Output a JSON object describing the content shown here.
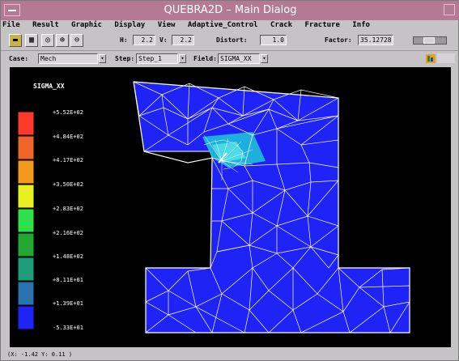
{
  "window": {
    "title": "QUEBRA2D – Main Dialog"
  },
  "menu": [
    "File",
    "Result",
    "Graphic",
    "Display",
    "View",
    "Adaptive_Control",
    "Crack",
    "Fracture",
    "Info"
  ],
  "toolbar": {
    "h_label": "H:",
    "h_value": "2.2",
    "v_label": "V:",
    "v_value": "2.2",
    "distort_label": "Distort:",
    "distort_value": "1.0",
    "factor_label": "Factor:",
    "factor_value": "35.12728"
  },
  "selectors": {
    "case_label": "Case:",
    "case_value": "Mech",
    "step_label": "Step:",
    "step_value": "Step_1",
    "field_label": "Field:",
    "field_value": "SIGMA_XX"
  },
  "legend": {
    "title": "SIGMA_XX",
    "labels": [
      "+5.52E+02",
      "+4.84E+02",
      "+4.17E+02",
      "+3.50E+02",
      "+2.83E+02",
      "+2.16E+02",
      "+1.48E+02",
      "+8.11E+01",
      "+1.39E+01",
      "-5.33E+01"
    ],
    "colors": [
      "#ff3a2a",
      "#f0652a",
      "#f39a1e",
      "#e8f020",
      "#2fe04a",
      "#24a632",
      "#1e9b78",
      "#2a72ad",
      "#1f23f6"
    ]
  },
  "status": {
    "text": "(X:  -1.42 Y:   0.11 )"
  }
}
